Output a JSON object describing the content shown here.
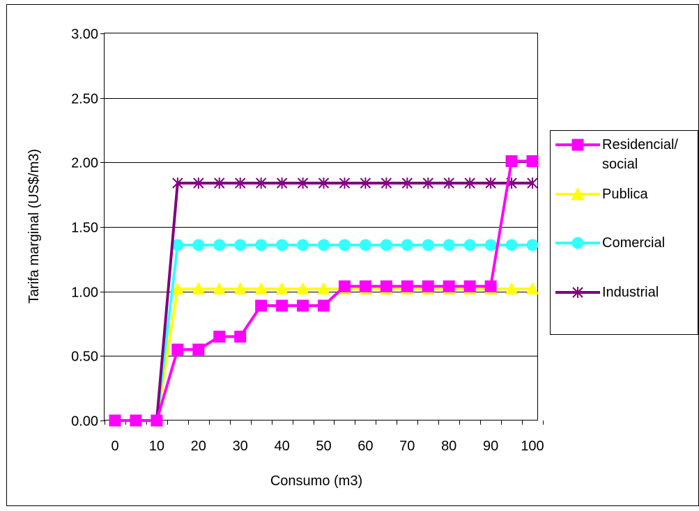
{
  "chart_data": {
    "type": "line",
    "title": "",
    "xlabel": "Consumo (m3)",
    "ylabel": "Tarifa marginal (US$/m3)",
    "xlim": [
      0,
      100
    ],
    "ylim": [
      0,
      3
    ],
    "x_ticks": [
      "0",
      "10",
      "20",
      "30",
      "40",
      "50",
      "60",
      "70",
      "80",
      "90",
      "100"
    ],
    "y_ticks": [
      "0.00",
      "0.50",
      "1.00",
      "1.50",
      "2.00",
      "2.50",
      "3.00"
    ],
    "y_tick_values": [
      0,
      0.5,
      1,
      1.5,
      2,
      2.5,
      3
    ],
    "grid": "horizontal",
    "legend_position": "right",
    "x": [
      0,
      5,
      10,
      15,
      20,
      25,
      30,
      35,
      40,
      45,
      50,
      55,
      60,
      65,
      70,
      75,
      80,
      85,
      90,
      95,
      100
    ],
    "series": [
      {
        "name_lines": [
          "Residencial/",
          "social"
        ],
        "color": "#ff00ff",
        "marker": "square",
        "values": [
          0,
          0,
          0,
          0.55,
          0.55,
          0.65,
          0.65,
          0.89,
          0.89,
          0.89,
          0.89,
          1.04,
          1.04,
          1.04,
          1.04,
          1.04,
          1.04,
          1.04,
          1.04,
          2.01,
          2.01
        ]
      },
      {
        "name_lines": [
          "Publica"
        ],
        "color": "#ffff00",
        "marker": "triangle",
        "values": [
          0,
          0,
          0,
          1.02,
          1.02,
          1.02,
          1.02,
          1.02,
          1.02,
          1.02,
          1.02,
          1.02,
          1.02,
          1.02,
          1.02,
          1.02,
          1.02,
          1.02,
          1.02,
          1.02,
          1.02
        ]
      },
      {
        "name_lines": [
          "Comercial"
        ],
        "color": "#33ffff",
        "marker": "circle",
        "values": [
          0,
          0,
          0,
          1.36,
          1.36,
          1.36,
          1.36,
          1.36,
          1.36,
          1.36,
          1.36,
          1.36,
          1.36,
          1.36,
          1.36,
          1.36,
          1.36,
          1.36,
          1.36,
          1.36,
          1.36
        ]
      },
      {
        "name_lines": [
          "Industrial"
        ],
        "color": "#800080",
        "marker": "asterisk",
        "values": [
          0,
          0,
          0,
          1.84,
          1.84,
          1.84,
          1.84,
          1.84,
          1.84,
          1.84,
          1.84,
          1.84,
          1.84,
          1.84,
          1.84,
          1.84,
          1.84,
          1.84,
          1.84,
          1.84,
          1.84
        ]
      }
    ]
  }
}
